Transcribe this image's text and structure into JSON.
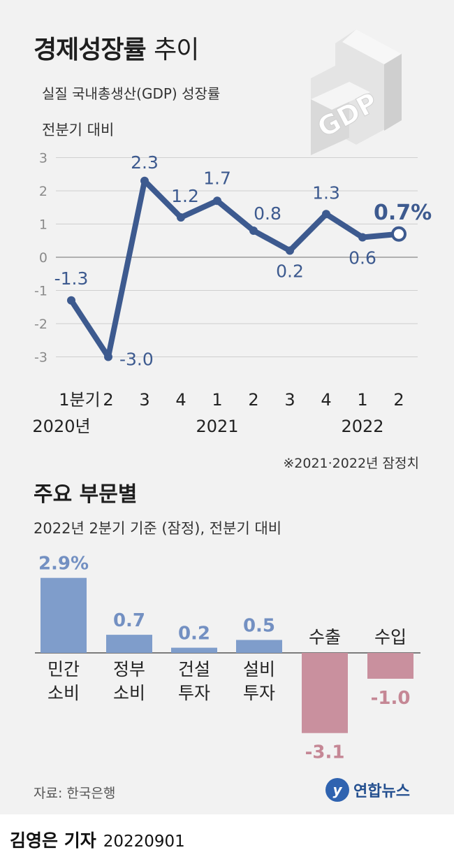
{
  "header": {
    "title_bold": "경제성장률",
    "title_light": "추이",
    "subtitle": "실질 국내총생산(GDP) 성장률",
    "unit": "전분기 대비",
    "illustration_text": "GDP"
  },
  "chart_data": [
    {
      "type": "line",
      "x": [
        "1분기",
        "2",
        "3",
        "4",
        "1",
        "2",
        "3",
        "4",
        "1",
        "2"
      ],
      "year_labels": [
        "2020년",
        "2021",
        "2022"
      ],
      "values": [
        -1.3,
        -3.0,
        2.3,
        1.2,
        1.7,
        0.8,
        0.2,
        1.3,
        0.6,
        0.7
      ],
      "value_labels": [
        "-1.3",
        "-3.0",
        "2.3",
        "1.2",
        "1.7",
        "0.8",
        "0.2",
        "1.3",
        "0.6",
        "0.7%"
      ],
      "yticks": [
        "3",
        "2",
        "1",
        "0",
        "-1",
        "-2",
        "-3"
      ],
      "ylim": [
        -3,
        3
      ],
      "grid": true,
      "note": "※2021·2022년 잠정치"
    },
    {
      "type": "bar",
      "title": "주요 부문별",
      "basis": "2022년 2분기 기준 (잠정), 전분기 대비",
      "categories": [
        [
          "민간",
          "소비"
        ],
        [
          "정부",
          "소비"
        ],
        [
          "건설",
          "투자"
        ],
        [
          "설비",
          "투자"
        ],
        [
          "수출"
        ],
        [
          "수입"
        ]
      ],
      "values": [
        2.9,
        0.7,
        0.2,
        0.5,
        -3.1,
        -1.0
      ],
      "value_labels": [
        "2.9%",
        "0.7",
        "0.2",
        "0.5",
        "-3.1",
        "-1.0"
      ]
    }
  ],
  "colors": {
    "line": "#3d5a8f",
    "line_label": "#3d5a8f",
    "bar_positive": "#7f9dcb",
    "bar_positive_label": "#7390c2",
    "bar_negative": "#c9909e",
    "bar_negative_label": "#c58795",
    "grid": "#cfcfcf"
  },
  "footer": {
    "source": "자료: 한국은행",
    "logo_mark": "y",
    "logo_text": "연합뉴스",
    "reporter": "김영은 기자",
    "date": "20220901"
  }
}
